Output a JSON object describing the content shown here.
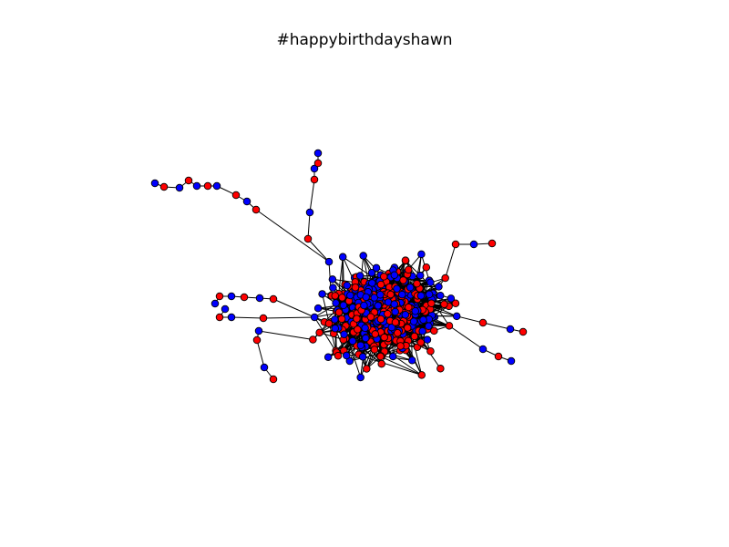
{
  "figure": {
    "title": "#happybirthdayshawn"
  },
  "chart_data": {
    "type": "network",
    "title": "#happybirthdayshawn",
    "node_colors": [
      "#ff0000",
      "#0000ff"
    ],
    "edge_color": "#000000",
    "node_outline_color": "#000000",
    "axes_visible": false
  }
}
